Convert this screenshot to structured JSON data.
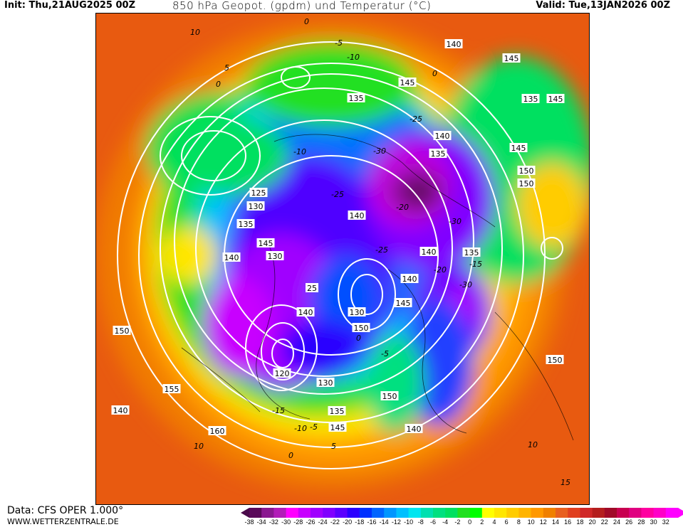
{
  "header": {
    "init": "Init: Thu,21AUG2025 00Z",
    "title": "850 hPa Geopot. (gpdm) und Temperatur (°C)",
    "valid": "Valid: Tue,13JAN2026 00Z"
  },
  "footer": {
    "data_source": "Data: CFS OPER 1.000°",
    "website": "WWW.WETTERZENTRALE.DE"
  },
  "legend": {
    "ticks": [
      "-38",
      "-34",
      "-32",
      "-30",
      "-28",
      "-26",
      "-24",
      "-22",
      "-20",
      "-18",
      "-16",
      "-14",
      "-12",
      "-10",
      "-8",
      "-6",
      "-4",
      "-2",
      "0",
      "2",
      "4",
      "6",
      "8",
      "10",
      "12",
      "14",
      "16",
      "18",
      "20",
      "22",
      "24",
      "26",
      "28",
      "30",
      "32"
    ],
    "colors": [
      "#5a0a5a",
      "#8a1890",
      "#b21cb8",
      "#ff00ff",
      "#c800ff",
      "#a000ff",
      "#8000ff",
      "#5a00ff",
      "#2a00ff",
      "#0030ff",
      "#0064ff",
      "#0096ff",
      "#00c0ff",
      "#00e6f0",
      "#00e0b0",
      "#00e080",
      "#00e060",
      "#20e020",
      "#00ff00",
      "#ffff00",
      "#ffe600",
      "#ffcc00",
      "#ffb400",
      "#ff9900",
      "#f08000",
      "#e86020",
      "#e04020",
      "#d02828",
      "#b41e1e",
      "#a00a28",
      "#c80050",
      "#e00080",
      "#ff00a0",
      "#ff00c8",
      "#ff00ff"
    ]
  },
  "map": {
    "geopotential_labels": [
      "140",
      "145",
      "135",
      "145",
      "145",
      "135",
      "140",
      "135",
      "150",
      "145",
      "125",
      "130",
      "135",
      "140",
      "140",
      "135",
      "130",
      "145",
      "140",
      "145",
      "140",
      "25",
      "150",
      "140",
      "130",
      "120",
      "130",
      "145",
      "150",
      "150",
      "155",
      "135",
      "150",
      "140",
      "140",
      "160",
      "150"
    ],
    "temperature_labels": [
      "10",
      "0",
      "-5",
      "-10",
      "5",
      "0",
      "-25",
      "-30",
      "-10",
      "0",
      "-20",
      "-25",
      "-30",
      "-25",
      "-20",
      "-15",
      "-30",
      "-15",
      "-10",
      "-5",
      "0",
      "5",
      "10",
      "10",
      "15",
      "-5",
      "0"
    ]
  }
}
